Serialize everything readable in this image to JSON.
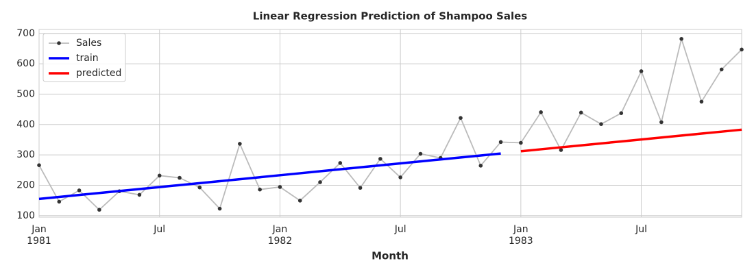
{
  "chart_data": {
    "type": "line",
    "title": "Linear Regression Prediction of Shampoo Sales",
    "xlabel": "Month",
    "x": [
      "1981-01",
      "1981-02",
      "1981-03",
      "1981-04",
      "1981-05",
      "1981-06",
      "1981-07",
      "1981-08",
      "1981-09",
      "1981-10",
      "1981-11",
      "1981-12",
      "1982-01",
      "1982-02",
      "1982-03",
      "1982-04",
      "1982-05",
      "1982-06",
      "1982-07",
      "1982-08",
      "1982-09",
      "1982-10",
      "1982-11",
      "1982-12",
      "1983-01",
      "1983-02",
      "1983-03",
      "1983-04",
      "1983-05",
      "1983-06",
      "1983-07",
      "1983-08",
      "1983-09",
      "1983-10",
      "1983-11",
      "1983-12"
    ],
    "series": [
      {
        "name": "Sales",
        "color": "#bbbbbb",
        "marker_color": "#333333",
        "markers": true,
        "values": [
          266.0,
          145.9,
          183.1,
          119.3,
          180.3,
          168.5,
          231.8,
          224.5,
          192.8,
          122.9,
          336.5,
          185.9,
          194.3,
          149.5,
          210.1,
          273.3,
          191.4,
          287.0,
          226.0,
          303.6,
          289.9,
          421.6,
          264.5,
          342.3,
          339.7,
          440.4,
          315.9,
          439.3,
          401.3,
          437.4,
          575.5,
          407.6,
          682.0,
          475.3,
          581.3,
          646.9
        ]
      },
      {
        "name": "train",
        "color": "#0000ff",
        "markers": false,
        "values": [
          155,
          161.5,
          168,
          174.5,
          181,
          187.5,
          194,
          200.5,
          207,
          213.5,
          220,
          226.5,
          233,
          239.5,
          246,
          252.5,
          259,
          265.5,
          272,
          278.5,
          285,
          291.5,
          298,
          304.5,
          null,
          null,
          null,
          null,
          null,
          null,
          null,
          null,
          null,
          null,
          null,
          null
        ]
      },
      {
        "name": "predicted",
        "color": "#ff0000",
        "markers": false,
        "values": [
          null,
          null,
          null,
          null,
          null,
          null,
          null,
          null,
          null,
          null,
          null,
          null,
          null,
          null,
          null,
          null,
          null,
          null,
          null,
          null,
          null,
          null,
          null,
          null,
          312,
          318.45,
          324.9,
          331.35,
          337.8,
          344.25,
          350.7,
          357.15,
          363.6,
          370.05,
          376.5,
          383
        ]
      }
    ],
    "xlim": [
      "1981-01",
      "1983-12"
    ],
    "xticks": [
      {
        "value": "1981-01",
        "label": "Jan\n1981"
      },
      {
        "value": "1981-07",
        "label": "Jul"
      },
      {
        "value": "1982-01",
        "label": "Jan\n1982"
      },
      {
        "value": "1982-07",
        "label": "Jul"
      },
      {
        "value": "1983-01",
        "label": "Jan\n1983"
      },
      {
        "value": "1983-07",
        "label": "Jul"
      }
    ],
    "ylim": [
      95,
      713
    ],
    "yticks": [
      100,
      200,
      300,
      400,
      500,
      600,
      700
    ],
    "grid": true,
    "legend": "upper left"
  }
}
